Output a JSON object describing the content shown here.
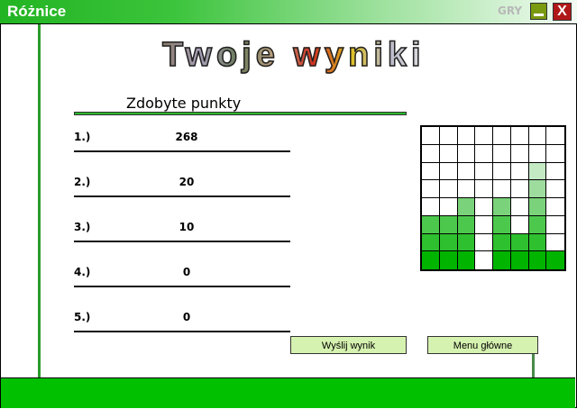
{
  "window": {
    "title": "Różnice",
    "badge": "GRY",
    "minimize_icon": "minimize-icon",
    "close_label": "X"
  },
  "heading": "Twoje wyniki",
  "scores_header": "Zdobyte punkty",
  "scores": [
    {
      "rank": "1.)",
      "value": "268"
    },
    {
      "rank": "2.)",
      "value": "20"
    },
    {
      "rank": "3.)",
      "value": "10"
    },
    {
      "rank": "4.)",
      "value": "0"
    },
    {
      "rank": "5.)",
      "value": "0"
    }
  ],
  "grid": {
    "rows": 8,
    "cols": 8,
    "column_heights": [
      3,
      3,
      4,
      0,
      4,
      2,
      6,
      1
    ],
    "level_colors": [
      "#00b400",
      "#2ec02e",
      "#4cc84c",
      "#7ad27a",
      "#9edc9e",
      "#c4eac4"
    ]
  },
  "buttons": {
    "submit": "Wyślij wynik",
    "menu": "Menu główne"
  },
  "colors": {
    "accent": "#00c000"
  }
}
